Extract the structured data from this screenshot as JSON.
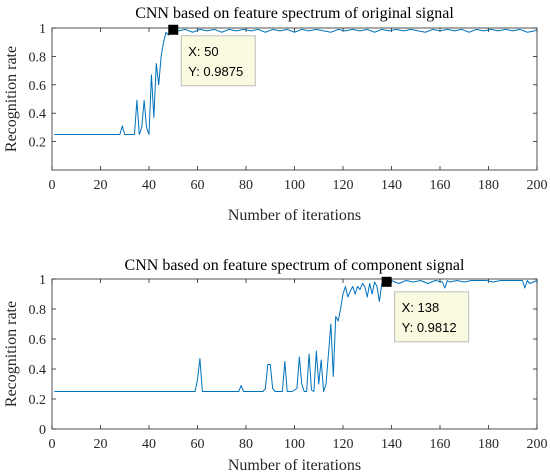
{
  "chart_data": [
    {
      "type": "line",
      "title": "CNN based on feature spectrum of original signal",
      "xlabel": "Number of iterations",
      "ylabel": "Recognition rate",
      "xlim": [
        0,
        200
      ],
      "ylim": [
        0,
        1
      ],
      "xticks": [
        0,
        20,
        40,
        60,
        80,
        100,
        120,
        140,
        160,
        180,
        200
      ],
      "yticks": [
        0.2,
        0.4,
        0.6,
        0.8,
        1
      ],
      "grid": false,
      "color": "#0072BD",
      "x": [
        1,
        28,
        29,
        30,
        34,
        35,
        36,
        37,
        38,
        39,
        40,
        41,
        42,
        43,
        44,
        45,
        46,
        47,
        48,
        49,
        50,
        52,
        55,
        58,
        61,
        64,
        67,
        70,
        73,
        76,
        79,
        82,
        85,
        88,
        91,
        94,
        97,
        100,
        103,
        106,
        109,
        112,
        115,
        118,
        121,
        124,
        127,
        130,
        133,
        136,
        139,
        142,
        145,
        148,
        151,
        154,
        157,
        160,
        163,
        166,
        169,
        172,
        175,
        178,
        181,
        184,
        187,
        190,
        193,
        196,
        199,
        200
      ],
      "y": [
        0.25,
        0.25,
        0.31,
        0.25,
        0.25,
        0.49,
        0.25,
        0.3,
        0.49,
        0.3,
        0.25,
        0.67,
        0.37,
        0.75,
        0.6,
        0.8,
        0.9,
        0.97,
        0.95,
        0.98,
        0.9875,
        0.98,
        0.99,
        0.97,
        0.99,
        0.98,
        0.99,
        0.97,
        0.99,
        0.98,
        0.99,
        0.98,
        0.99,
        0.97,
        0.99,
        0.98,
        0.99,
        0.97,
        0.99,
        0.98,
        0.99,
        0.98,
        0.97,
        0.99,
        0.98,
        0.99,
        0.98,
        0.99,
        0.97,
        0.99,
        0.98,
        0.99,
        0.98,
        0.99,
        0.98,
        0.97,
        0.99,
        0.98,
        0.99,
        0.98,
        0.99,
        0.97,
        0.99,
        0.98,
        0.99,
        0.98,
        0.99,
        0.98,
        0.99,
        0.97,
        0.98,
        0.99
      ],
      "datatip": {
        "x": 50,
        "y": 0.9875,
        "x_text": "X: 50",
        "y_text": "Y: 0.9875"
      }
    },
    {
      "type": "line",
      "title": "CNN based on feature spectrum of component signal",
      "xlabel": "Number of iterations",
      "ylabel": "Recognition rate",
      "xlim": [
        0,
        200
      ],
      "ylim": [
        0,
        1
      ],
      "xticks": [
        0,
        20,
        40,
        60,
        80,
        100,
        120,
        140,
        160,
        180,
        200
      ],
      "yticks": [
        0,
        0.2,
        0.4,
        0.6,
        0.8,
        1
      ],
      "grid": false,
      "color": "#0072BD",
      "x": [
        1,
        59,
        60,
        61,
        62,
        77,
        78,
        79,
        87,
        88,
        89,
        90,
        91,
        92,
        95,
        96,
        97,
        98,
        99,
        101,
        102,
        103,
        104,
        105,
        106,
        107,
        108,
        109,
        110,
        111,
        112,
        113,
        114,
        115,
        116,
        117,
        118,
        119,
        120,
        121,
        122,
        123,
        124,
        125,
        126,
        127,
        128,
        129,
        130,
        131,
        132,
        133,
        134,
        135,
        136,
        137,
        138,
        140,
        143,
        146,
        149,
        152,
        155,
        158,
        161,
        162,
        163,
        164,
        167,
        170,
        173,
        176,
        179,
        182,
        185,
        188,
        191,
        194,
        195,
        196,
        197,
        200
      ],
      "y": [
        0.25,
        0.25,
        0.33,
        0.47,
        0.25,
        0.25,
        0.29,
        0.25,
        0.25,
        0.27,
        0.43,
        0.43,
        0.27,
        0.25,
        0.25,
        0.45,
        0.25,
        0.25,
        0.25,
        0.27,
        0.48,
        0.3,
        0.25,
        0.25,
        0.5,
        0.26,
        0.25,
        0.52,
        0.3,
        0.46,
        0.25,
        0.3,
        0.5,
        0.7,
        0.35,
        0.75,
        0.72,
        0.8,
        0.9,
        0.95,
        0.88,
        0.92,
        0.95,
        0.9,
        0.95,
        0.93,
        0.97,
        0.95,
        0.88,
        0.97,
        0.9,
        0.98,
        0.95,
        0.85,
        0.97,
        0.98,
        0.9812,
        0.99,
        0.97,
        0.99,
        0.98,
        0.99,
        0.97,
        0.99,
        0.98,
        0.94,
        0.99,
        0.98,
        0.99,
        0.98,
        0.99,
        0.99,
        0.99,
        0.98,
        0.99,
        0.99,
        0.99,
        0.99,
        0.94,
        0.99,
        0.97,
        0.99
      ],
      "datatip": {
        "x": 138,
        "y": 0.9812,
        "x_text": "X: 138",
        "y_text": "Y: 0.9812"
      }
    }
  ]
}
